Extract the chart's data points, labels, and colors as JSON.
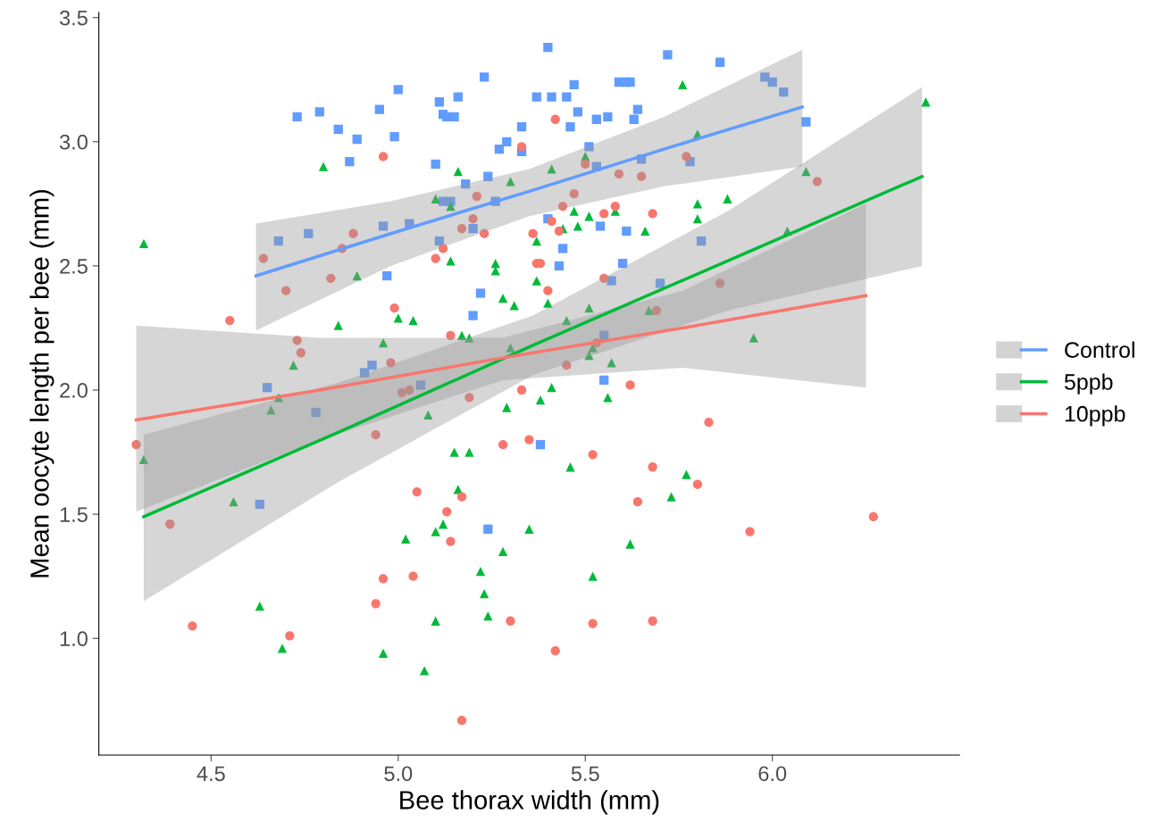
{
  "chart_data": {
    "type": "scatter",
    "xlabel": "Bee thorax width (mm)",
    "ylabel": "Mean oocyte length per bee (mm)",
    "xlim": [
      4.2,
      6.5
    ],
    "ylim": [
      0.53,
      3.52
    ],
    "xticks": [
      4.5,
      {
        "value": 5,
        "label": "5.0"
      },
      5.5,
      {
        "value": 6,
        "label": "6.0"
      }
    ],
    "yticks": [
      {
        "value": 1,
        "label": "1.0"
      },
      1.5,
      {
        "value": 2,
        "label": "2.0"
      },
      2.5,
      {
        "value": 3,
        "label": "3.0"
      },
      3.5
    ],
    "grid": false,
    "legend": "right",
    "series": [
      {
        "marker": "square",
        "color": "#619cff",
        "x": [
          4.73,
          4.79,
          4.84,
          4.89,
          4.87,
          4.95,
          4.99,
          5.0,
          5.1,
          5.11,
          5.12,
          5.13,
          5.15,
          5.16,
          5.18,
          5.23,
          5.24,
          5.29,
          5.33,
          5.33,
          5.37,
          5.4,
          5.41,
          5.45,
          5.47,
          5.48,
          5.46,
          5.51,
          5.53,
          5.56,
          5.59,
          5.61,
          5.62,
          5.63,
          5.64,
          5.72,
          5.86,
          5.98,
          6.0,
          6.03,
          6.09,
          5.78,
          5.53,
          5.65,
          5.26,
          5.27,
          5.12,
          5.03,
          5.11,
          5.14,
          5.2,
          4.68,
          4.76,
          4.96,
          4.97,
          5.4,
          5.44,
          5.43,
          5.54,
          5.57,
          5.6,
          5.61,
          5.7,
          5.81,
          5.22,
          5.2,
          4.91,
          4.93,
          5.06,
          4.65,
          4.78,
          5.38,
          5.55,
          5.24,
          4.63,
          5.55
        ],
        "values": [
          3.1,
          3.12,
          3.05,
          3.01,
          2.92,
          3.13,
          3.02,
          3.21,
          2.91,
          3.16,
          3.11,
          3.1,
          3.1,
          3.18,
          2.83,
          3.26,
          2.86,
          3.0,
          3.06,
          2.96,
          3.18,
          3.38,
          3.18,
          3.18,
          3.23,
          3.12,
          3.06,
          2.98,
          3.09,
          3.1,
          3.24,
          3.24,
          3.24,
          3.09,
          3.13,
          3.35,
          3.32,
          3.26,
          3.24,
          3.2,
          3.08,
          2.92,
          2.9,
          2.93,
          2.76,
          2.97,
          2.76,
          2.67,
          2.6,
          2.76,
          2.65,
          2.6,
          2.63,
          2.66,
          2.46,
          2.69,
          2.57,
          2.5,
          2.66,
          2.44,
          2.51,
          2.64,
          2.43,
          2.6,
          2.39,
          2.3,
          2.07,
          2.1,
          2.02,
          2.01,
          1.91,
          1.78,
          2.04,
          1.44,
          1.54,
          2.22
        ]
      },
      {
        "marker": "triangle",
        "color": "#00ba38",
        "x": [
          4.32,
          4.8,
          4.89,
          4.84,
          4.72,
          4.66,
          4.68,
          4.96,
          5.0,
          5.04,
          4.32,
          4.56,
          4.63,
          4.69,
          4.96,
          5.02,
          5.07,
          5.1,
          5.1,
          5.12,
          5.16,
          5.15,
          5.19,
          5.22,
          5.23,
          5.24,
          5.28,
          5.29,
          5.35,
          5.38,
          5.41,
          5.46,
          5.52,
          5.62,
          5.56,
          5.73,
          5.77,
          5.08,
          5.1,
          5.14,
          5.16,
          5.3,
          5.26,
          5.26,
          5.14,
          5.31,
          5.28,
          5.17,
          5.19,
          5.37,
          5.37,
          5.4,
          5.41,
          5.44,
          5.47,
          5.48,
          5.51,
          5.5,
          5.51,
          5.58,
          5.66,
          5.45,
          5.51,
          5.52,
          5.57,
          5.3,
          5.67,
          5.76,
          5.8,
          5.8,
          5.8,
          5.88,
          5.95,
          6.09,
          6.41,
          6.04
        ],
        "values": [
          2.59,
          2.9,
          2.46,
          2.26,
          2.1,
          1.92,
          1.97,
          2.19,
          2.29,
          2.28,
          1.72,
          1.55,
          1.13,
          0.96,
          0.94,
          1.4,
          0.87,
          1.07,
          1.43,
          1.46,
          1.6,
          1.75,
          1.75,
          1.27,
          1.18,
          1.09,
          1.35,
          1.93,
          1.44,
          1.96,
          2.01,
          1.69,
          1.25,
          1.38,
          1.97,
          1.57,
          1.66,
          1.9,
          2.77,
          2.74,
          2.88,
          2.84,
          2.51,
          2.48,
          2.52,
          2.34,
          2.37,
          2.22,
          2.21,
          2.6,
          2.44,
          2.35,
          2.89,
          2.65,
          2.72,
          2.66,
          2.7,
          2.94,
          2.33,
          2.72,
          2.64,
          2.28,
          2.14,
          2.17,
          2.11,
          2.17,
          2.32,
          3.23,
          3.03,
          2.75,
          2.69,
          2.77,
          2.21,
          2.88,
          3.16,
          2.64
        ]
      },
      {
        "marker": "circle",
        "color": "#f8766d",
        "x": [
          4.3,
          4.39,
          4.45,
          4.55,
          4.64,
          4.7,
          4.71,
          4.73,
          4.82,
          4.85,
          4.88,
          4.74,
          4.98,
          4.99,
          4.96,
          4.94,
          4.94,
          4.96,
          5.04,
          5.05,
          5.01,
          5.03,
          5.1,
          5.12,
          5.14,
          5.14,
          5.13,
          5.17,
          5.17,
          5.17,
          5.2,
          5.23,
          5.21,
          5.19,
          5.28,
          5.3,
          5.33,
          5.33,
          5.35,
          5.36,
          5.37,
          5.38,
          5.4,
          5.41,
          5.42,
          5.43,
          5.42,
          5.44,
          5.45,
          5.47,
          5.5,
          5.52,
          5.52,
          5.53,
          5.55,
          5.55,
          5.58,
          5.59,
          5.64,
          5.62,
          5.65,
          5.68,
          5.68,
          5.68,
          5.69,
          5.77,
          5.8,
          5.83,
          5.86,
          5.94,
          6.12,
          6.27
        ],
        "values": [
          1.78,
          1.46,
          1.05,
          2.28,
          2.53,
          2.4,
          1.01,
          2.2,
          2.45,
          2.57,
          2.63,
          2.15,
          2.11,
          2.33,
          2.94,
          1.82,
          1.14,
          1.24,
          1.25,
          1.59,
          1.99,
          2.0,
          2.53,
          2.57,
          2.22,
          1.39,
          1.51,
          1.57,
          0.67,
          2.65,
          2.69,
          2.63,
          2.78,
          1.97,
          1.78,
          1.07,
          2.98,
          2.0,
          1.8,
          2.63,
          2.51,
          2.51,
          2.4,
          2.68,
          3.09,
          2.64,
          0.95,
          2.74,
          2.1,
          2.79,
          2.91,
          1.74,
          1.06,
          2.19,
          2.45,
          2.71,
          2.74,
          2.87,
          1.55,
          2.02,
          2.86,
          2.71,
          1.69,
          1.07,
          2.32,
          2.94,
          1.62,
          1.87,
          2.43,
          1.43,
          2.84,
          1.49
        ]
      },
      {
        "type": "line",
        "name": "Control",
        "color": "#619cff",
        "x": [
          4.62,
          4.98,
          5.35,
          5.71,
          6.08
        ],
        "values": [
          2.46,
          2.63,
          2.8,
          2.97,
          3.14
        ],
        "lower": [
          2.24,
          2.5,
          2.7,
          2.82,
          2.9
        ],
        "upper": [
          2.67,
          2.76,
          2.89,
          3.1,
          3.37
        ]
      },
      {
        "type": "line",
        "name": "5ppb",
        "color": "#00ba38",
        "x": [
          4.32,
          4.84,
          5.36,
          5.88,
          6.4
        ],
        "values": [
          1.49,
          1.83,
          2.18,
          2.52,
          2.86
        ],
        "lower": [
          1.15,
          1.63,
          2.06,
          2.32,
          2.5
        ],
        "upper": [
          1.82,
          2.03,
          2.3,
          2.72,
          3.22
        ]
      },
      {
        "type": "line",
        "name": "10ppb",
        "color": "#f8766d",
        "x": [
          4.3,
          4.79,
          5.28,
          5.76,
          6.25
        ],
        "values": [
          1.88,
          2.0,
          2.13,
          2.25,
          2.38
        ],
        "lower": [
          1.51,
          1.8,
          2.04,
          2.09,
          2.01
        ],
        "upper": [
          2.26,
          2.21,
          2.21,
          2.4,
          2.75
        ]
      }
    ]
  }
}
